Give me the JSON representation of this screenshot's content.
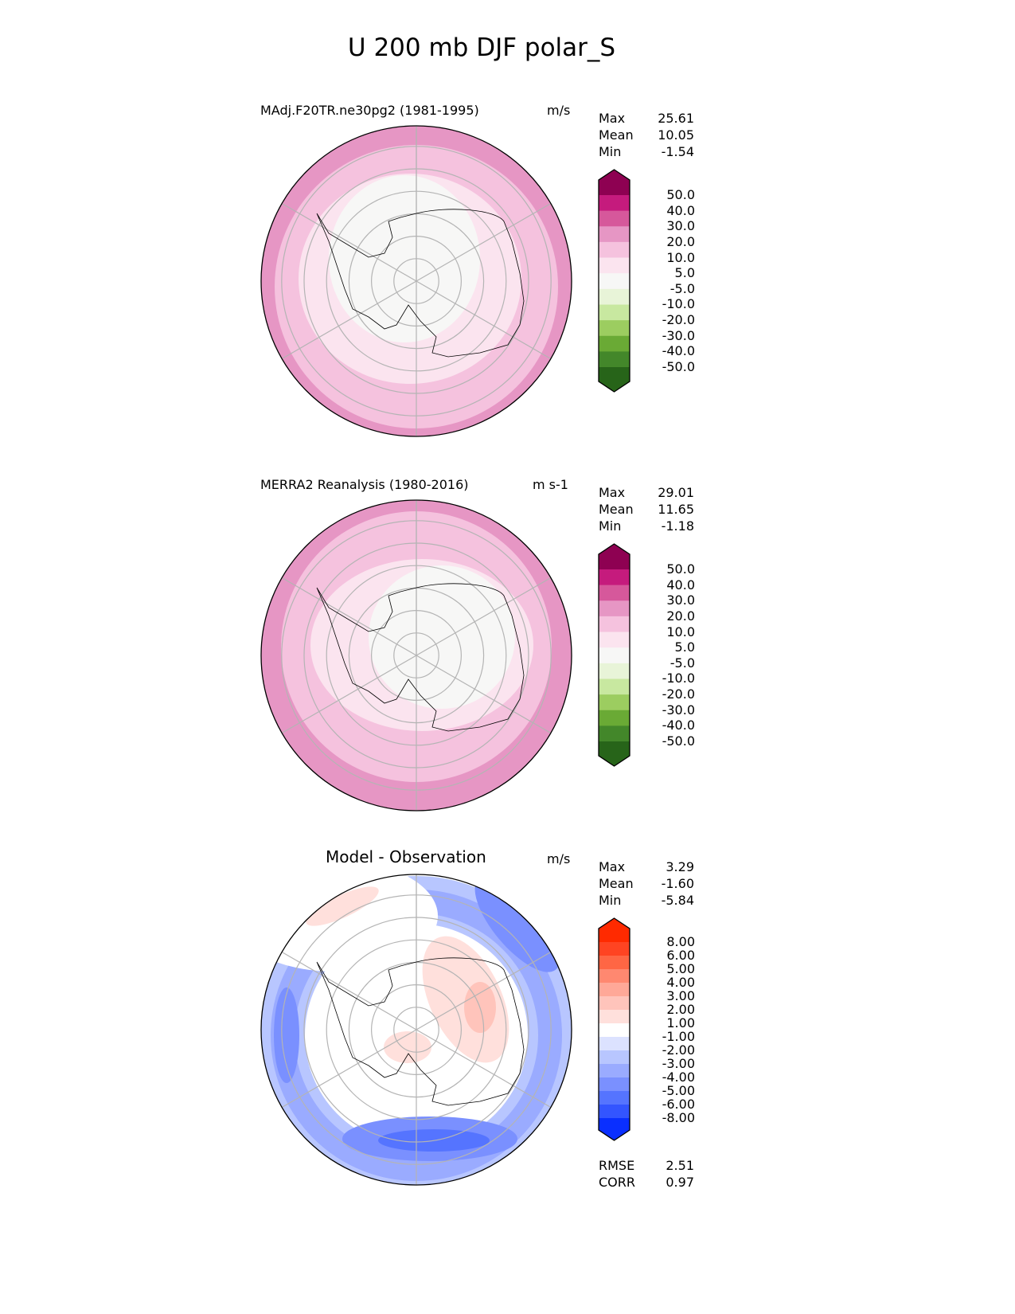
{
  "figure_title": "U 200 mb DJF polar_S",
  "panels": [
    {
      "title": "MAdj.F20TR.ne30pg2 (1981-1995)",
      "units": "m/s",
      "stats": {
        "max_label": "Max",
        "max": "25.61",
        "mean_label": "Mean",
        "mean": "10.05",
        "min_label": "Min",
        "min": "-1.54"
      },
      "colorbar_labels": [
        "50.0",
        "40.0",
        "30.0",
        "20.0",
        "10.0",
        "5.0",
        "-5.0",
        "-10.0",
        "-20.0",
        "-30.0",
        "-40.0",
        "-50.0"
      ],
      "colorbar_colors": [
        "#8e0152",
        "#c51b7d",
        "#d6589b",
        "#e696c4",
        "#f5c2de",
        "#fbe4ef",
        "#f7f7f6",
        "#e8f4d8",
        "#c8e8a0",
        "#9ccd60",
        "#6aaa35",
        "#43872a",
        "#276419"
      ]
    },
    {
      "title": "MERRA2 Reanalysis (1980-2016)",
      "units": "m s-1",
      "stats": {
        "max_label": "Max",
        "max": "29.01",
        "mean_label": "Mean",
        "mean": "11.65",
        "min_label": "Min",
        "min": "-1.18"
      },
      "colorbar_labels": [
        "50.0",
        "40.0",
        "30.0",
        "20.0",
        "10.0",
        "5.0",
        "-5.0",
        "-10.0",
        "-20.0",
        "-30.0",
        "-40.0",
        "-50.0"
      ],
      "colorbar_colors": [
        "#8e0152",
        "#c51b7d",
        "#d6589b",
        "#e696c4",
        "#f5c2de",
        "#fbe4ef",
        "#f7f7f6",
        "#e8f4d8",
        "#c8e8a0",
        "#9ccd60",
        "#6aaa35",
        "#43872a",
        "#276419"
      ]
    },
    {
      "title": "Model - Observation",
      "units": "m/s",
      "stats": {
        "max_label": "Max",
        "max": "3.29",
        "mean_label": "Mean",
        "mean": "-1.60",
        "min_label": "Min",
        "min": "-5.84"
      },
      "colorbar_labels": [
        "8.00",
        "6.00",
        "5.00",
        "4.00",
        "3.00",
        "2.00",
        "1.00",
        "-1.00",
        "-2.00",
        "-3.00",
        "-4.00",
        "-5.00",
        "-6.00",
        "-8.00"
      ],
      "colorbar_colors": [
        "#ff2a00",
        "#ff4422",
        "#ff6644",
        "#ff8870",
        "#ffa898",
        "#ffc4bb",
        "#ffe0dc",
        "#ffffff",
        "#dce2ff",
        "#b8c6ff",
        "#9aabff",
        "#7a90ff",
        "#5574ff",
        "#3355ff",
        "#0a2fff"
      ],
      "metrics": {
        "rmse_label": "RMSE",
        "rmse": "2.51",
        "corr_label": "CORR",
        "corr": "0.97"
      }
    }
  ]
}
